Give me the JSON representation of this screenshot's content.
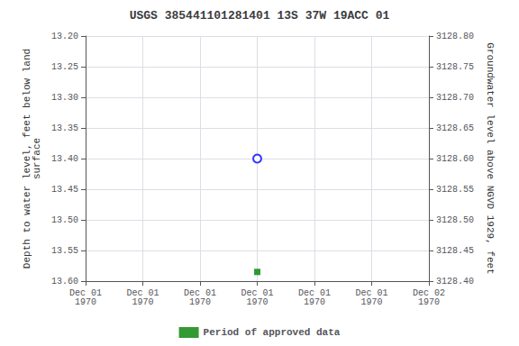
{
  "chart_data": {
    "type": "scatter",
    "title": "USGS 385441101281401 13S 37W 19ACC 01",
    "categories": [
      "Dec 01\n1970",
      "Dec 01\n1970",
      "Dec 01\n1970",
      "Dec 01\n1970",
      "Dec 01\n1970",
      "Dec 01\n1970",
      "Dec 02\n1970"
    ],
    "ylabel": "Depth to water level, feet below land\nsurface",
    "y2label": "Groundwater level above NGVD 1929, feet",
    "ylim": [
      13.6,
      13.2
    ],
    "yticks": [
      {
        "value": 13.2,
        "label": "13.20"
      },
      13.25,
      {
        "value": 13.3,
        "label": "13.30"
      },
      13.35,
      {
        "value": 13.4,
        "label": "13.40"
      },
      13.45,
      {
        "value": 13.5,
        "label": "13.50"
      },
      13.55,
      {
        "value": 13.6,
        "label": "13.60"
      }
    ],
    "y2lim": [
      3128.4,
      3128.8
    ],
    "y2ticks": [
      {
        "value": 3128.8,
        "label": "3128.80"
      },
      3128.75,
      {
        "value": 3128.7,
        "label": "3128.70"
      },
      3128.65,
      {
        "value": 3128.6,
        "label": "3128.60"
      },
      3128.55,
      {
        "value": 3128.5,
        "label": "3128.50"
      },
      3128.45,
      {
        "value": 3128.4,
        "label": "3128.40"
      }
    ],
    "series": [
      {
        "values": [
          null,
          null,
          null,
          13.4,
          null,
          null,
          null
        ],
        "color": "blue",
        "marker": "open circle"
      },
      {
        "name": "Period of approved data",
        "values": [
          null,
          null,
          null,
          13.585,
          null,
          null,
          null
        ],
        "color": "green",
        "marker": "square"
      }
    ],
    "grid": true,
    "legend": "bottom"
  }
}
